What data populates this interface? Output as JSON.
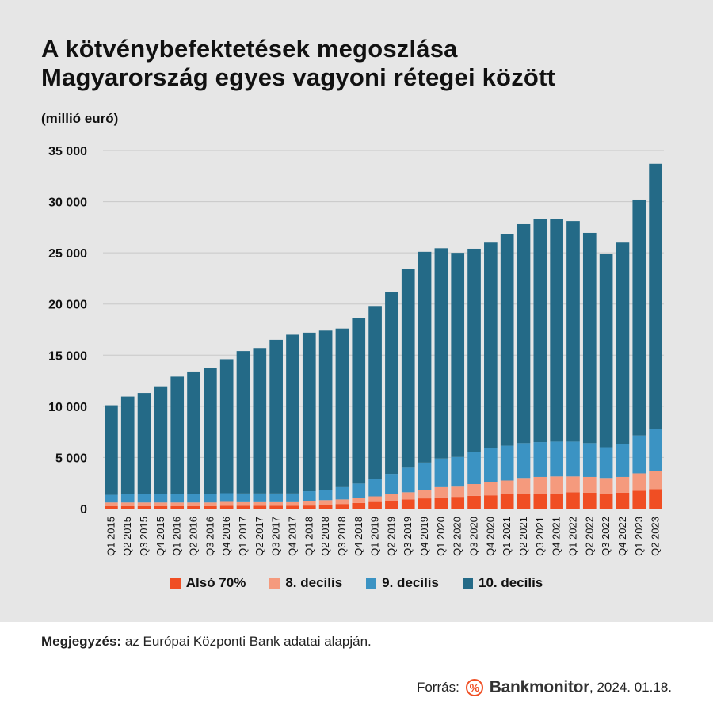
{
  "header": {
    "title_line1": "A kötvénybefektetések  megoszlása",
    "title_line2": "Magyarország egyes vagyoni rétegei között",
    "unit": "(millió euró)"
  },
  "colors": {
    "also70": "#f04e23",
    "decil8": "#f59a7d",
    "decil9": "#3b93c3",
    "decil10": "#246a87",
    "grid": "#c8c8c8",
    "panel": "#e6e6e6"
  },
  "chart_data": {
    "type": "bar",
    "stacked": true,
    "ylim": [
      0,
      35000
    ],
    "yticks": [
      0,
      5000,
      10000,
      15000,
      20000,
      25000,
      30000,
      35000
    ],
    "ytick_labels": [
      "0",
      "5 000",
      "10 000",
      "15 000",
      "20 000",
      "25 000",
      "30 000",
      "35 000"
    ],
    "grid": "horizontal",
    "legend_position": "bottom",
    "categories": [
      "Q1 2015",
      "Q2 2015",
      "Q3 2015",
      "Q4 2015",
      "Q1 2016",
      "Q2 2016",
      "Q3 2016",
      "Q4 2016",
      "Q1 2017",
      "Q2 2017",
      "Q3 2017",
      "Q4 2017",
      "Q1 2018",
      "Q2 2018",
      "Q3 2018",
      "Q4 2018",
      "Q1 2019",
      "Q2 2019",
      "Q3 2019",
      "Q4 2019",
      "Q1 2020",
      "Q2 2020",
      "Q3 2020",
      "Q4 2020",
      "Q1 2021",
      "Q2 2021",
      "Q3 2021",
      "Q4 2021",
      "Q1 2022",
      "Q2 2022",
      "Q3 2022",
      "Q4 2022",
      "Q1 2023",
      "Q2 2023"
    ],
    "series": [
      {
        "name": "Alsó 70%",
        "color": "#f04e23",
        "values": [
          250,
          250,
          250,
          250,
          250,
          250,
          250,
          280,
          280,
          280,
          280,
          280,
          300,
          380,
          450,
          550,
          650,
          750,
          900,
          1000,
          1100,
          1150,
          1250,
          1300,
          1400,
          1450,
          1450,
          1450,
          1600,
          1550,
          1450,
          1550,
          1750,
          1900
        ]
      },
      {
        "name": "8. decilis",
        "color": "#f59a7d",
        "values": [
          350,
          350,
          350,
          350,
          350,
          350,
          350,
          380,
          350,
          350,
          350,
          350,
          400,
          450,
          450,
          500,
          550,
          650,
          700,
          800,
          1000,
          1000,
          1150,
          1300,
          1350,
          1550,
          1650,
          1700,
          1550,
          1550,
          1550,
          1550,
          1700,
          1750
        ]
      },
      {
        "name": "9. decilis",
        "color": "#3b93c3",
        "values": [
          750,
          800,
          800,
          800,
          850,
          850,
          850,
          850,
          850,
          850,
          850,
          850,
          1000,
          1000,
          1200,
          1400,
          1700,
          2000,
          2400,
          2700,
          2800,
          2900,
          3100,
          3300,
          3400,
          3400,
          3400,
          3400,
          3400,
          3300,
          3000,
          3200,
          3700,
          4100
        ]
      },
      {
        "name": "10. decilis",
        "color": "#246a87",
        "values": [
          8750,
          9550,
          9900,
          10550,
          11450,
          11950,
          12300,
          13090,
          13920,
          14220,
          15020,
          15520,
          15500,
          15570,
          15500,
          16150,
          16900,
          17800,
          19400,
          20600,
          20550,
          19950,
          19900,
          20100,
          20650,
          21400,
          21800,
          21750,
          21550,
          20550,
          18900,
          19700,
          23050,
          25950
        ]
      }
    ]
  },
  "legend": {
    "items": [
      "Alsó 70%",
      "8. decilis",
      "9. decilis",
      "10. decilis"
    ]
  },
  "footer": {
    "note_label": "Megjegyzés:",
    "note_text": " az Európai Központi Bank adatai alapján.",
    "source_label": "Forrás:",
    "logo_symbol": "%",
    "logo_text": "Bankmonitor",
    "date": ", 2024. 01.18."
  }
}
